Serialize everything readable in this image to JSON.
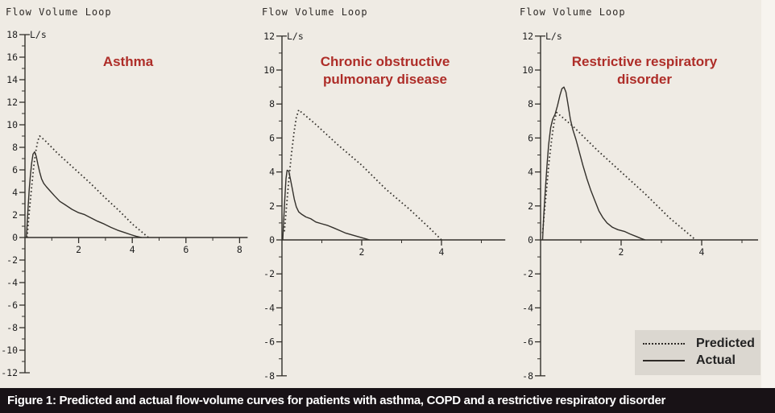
{
  "colors": {
    "background": "#efebe4",
    "accent_red": "#ae2d28",
    "curve_color": "#33302b",
    "tick_text": "#1f1f1f",
    "legend_bg": "#dbd7d0",
    "caption_bg": "#181216",
    "caption_text": "#ffffff"
  },
  "legend": {
    "predicted_label": "Predicted",
    "actual_label": "Actual"
  },
  "caption": {
    "text": "Figure 1: Predicted and actual flow-volume curves for patients with asthma, COPD and a restrictive respiratory disorder"
  },
  "chart_data": [
    {
      "type": "line",
      "header": "Flow Volume Loop",
      "title_lines": [
        "Asthma"
      ],
      "ylabel": "L/s",
      "unit_label": "L/s",
      "ylim": [
        -12,
        18
      ],
      "xlim": [
        0,
        8.3
      ],
      "y_label_step": 2,
      "y_minor_step": 1,
      "x_major_ticks": [
        2,
        4,
        6,
        8
      ],
      "x_minor_step": 1,
      "grid": false,
      "legend_position": "none",
      "series": [
        {
          "name": "Predicted",
          "style": "dotted",
          "points": [
            [
              0.08,
              0
            ],
            [
              0.12,
              1.2
            ],
            [
              0.18,
              2.8
            ],
            [
              0.25,
              4.5
            ],
            [
              0.32,
              6.2
            ],
            [
              0.4,
              7.6
            ],
            [
              0.48,
              8.6
            ],
            [
              0.55,
              9.0
            ],
            [
              0.75,
              8.6
            ],
            [
              1.2,
              7.5
            ],
            [
              1.8,
              6.2
            ],
            [
              2.4,
              4.9
            ],
            [
              3.0,
              3.5
            ],
            [
              3.5,
              2.4
            ],
            [
              4.0,
              1.2
            ],
            [
              4.3,
              0.6
            ],
            [
              4.6,
              0
            ]
          ]
        },
        {
          "name": "Actual",
          "style": "solid",
          "points": [
            [
              0.05,
              0
            ],
            [
              0.08,
              1.2
            ],
            [
              0.12,
              2.8
            ],
            [
              0.16,
              4.3
            ],
            [
              0.2,
              5.5
            ],
            [
              0.25,
              6.6
            ],
            [
              0.3,
              7.4
            ],
            [
              0.36,
              7.6
            ],
            [
              0.42,
              7.2
            ],
            [
              0.48,
              6.5
            ],
            [
              0.55,
              5.8
            ],
            [
              0.62,
              5.2
            ],
            [
              0.7,
              4.8
            ],
            [
              0.8,
              4.5
            ],
            [
              0.95,
              4.1
            ],
            [
              1.1,
              3.7
            ],
            [
              1.3,
              3.2
            ],
            [
              1.5,
              2.9
            ],
            [
              1.75,
              2.5
            ],
            [
              2.0,
              2.2
            ],
            [
              2.2,
              2.05
            ],
            [
              2.45,
              1.75
            ],
            [
              2.7,
              1.45
            ],
            [
              2.95,
              1.2
            ],
            [
              3.2,
              0.9
            ],
            [
              3.45,
              0.65
            ],
            [
              3.7,
              0.45
            ],
            [
              3.95,
              0.25
            ],
            [
              4.15,
              0.1
            ],
            [
              4.35,
              0
            ]
          ]
        }
      ]
    },
    {
      "type": "line",
      "header": "Flow Volume Loop",
      "title_lines": [
        "Chronic obstructive",
        "pulmonary disease"
      ],
      "ylabel": "L/s",
      "unit_label": "L/s",
      "ylim": [
        -8,
        12
      ],
      "xlim": [
        0,
        5.6
      ],
      "y_label_step": 2,
      "y_minor_step": 1,
      "x_major_ticks": [
        2,
        4
      ],
      "x_minor_step": 1,
      "grid": false,
      "legend_position": "none",
      "series": [
        {
          "name": "Predicted",
          "style": "dotted",
          "points": [
            [
              0.06,
              0.5
            ],
            [
              0.1,
              1.6
            ],
            [
              0.16,
              3.2
            ],
            [
              0.23,
              4.9
            ],
            [
              0.3,
              6.3
            ],
            [
              0.36,
              7.2
            ],
            [
              0.42,
              7.65
            ],
            [
              0.8,
              6.9
            ],
            [
              1.4,
              5.6
            ],
            [
              2.0,
              4.4
            ],
            [
              2.6,
              3.0
            ],
            [
              3.2,
              1.8
            ],
            [
              3.7,
              0.7
            ],
            [
              4.0,
              0
            ]
          ]
        },
        {
          "name": "Actual",
          "style": "solid",
          "points": [
            [
              0.02,
              0
            ],
            [
              0.04,
              1.0
            ],
            [
              0.07,
              2.4
            ],
            [
              0.1,
              3.6
            ],
            [
              0.13,
              4.1
            ],
            [
              0.17,
              4.05
            ],
            [
              0.21,
              3.6
            ],
            [
              0.26,
              3.0
            ],
            [
              0.31,
              2.4
            ],
            [
              0.36,
              1.95
            ],
            [
              0.42,
              1.65
            ],
            [
              0.5,
              1.5
            ],
            [
              0.6,
              1.35
            ],
            [
              0.72,
              1.25
            ],
            [
              0.85,
              1.05
            ],
            [
              1.0,
              0.95
            ],
            [
              1.15,
              0.85
            ],
            [
              1.3,
              0.7
            ],
            [
              1.45,
              0.55
            ],
            [
              1.6,
              0.4
            ],
            [
              1.75,
              0.3
            ],
            [
              1.9,
              0.2
            ],
            [
              2.05,
              0.1
            ],
            [
              2.2,
              0
            ]
          ]
        }
      ]
    },
    {
      "type": "line",
      "header": "Flow Volume Loop",
      "title_lines": [
        "Restrictive respiratory",
        "disorder"
      ],
      "ylabel": "L/s",
      "unit_label": "L/s",
      "ylim": [
        -8,
        12
      ],
      "xlim": [
        0,
        5.4
      ],
      "y_label_step": 2,
      "y_minor_step": 1,
      "x_major_ticks": [
        2,
        4
      ],
      "x_minor_step": 1,
      "grid": false,
      "legend_position": "none",
      "series": [
        {
          "name": "Predicted",
          "style": "dotted",
          "points": [
            [
              0.05,
              0.4
            ],
            [
              0.09,
              1.5
            ],
            [
              0.15,
              3.0
            ],
            [
              0.21,
              4.6
            ],
            [
              0.28,
              6.0
            ],
            [
              0.34,
              7.0
            ],
            [
              0.4,
              7.5
            ],
            [
              0.8,
              6.7
            ],
            [
              1.4,
              5.3
            ],
            [
              2.0,
              4.0
            ],
            [
              2.6,
              2.7
            ],
            [
              3.2,
              1.3
            ],
            [
              3.6,
              0.5
            ],
            [
              3.85,
              0
            ]
          ]
        },
        {
          "name": "Actual",
          "style": "solid",
          "points": [
            [
              0.05,
              0
            ],
            [
              0.08,
              1.5
            ],
            [
              0.12,
              3.0
            ],
            [
              0.16,
              4.4
            ],
            [
              0.2,
              5.6
            ],
            [
              0.25,
              6.6
            ],
            [
              0.3,
              7.1
            ],
            [
              0.36,
              7.4
            ],
            [
              0.42,
              7.9
            ],
            [
              0.48,
              8.5
            ],
            [
              0.53,
              8.9
            ],
            [
              0.58,
              9.0
            ],
            [
              0.63,
              8.7
            ],
            [
              0.68,
              8.0
            ],
            [
              0.74,
              7.1
            ],
            [
              0.8,
              6.5
            ],
            [
              0.88,
              5.9
            ],
            [
              0.96,
              5.2
            ],
            [
              1.05,
              4.4
            ],
            [
              1.15,
              3.6
            ],
            [
              1.25,
              2.9
            ],
            [
              1.35,
              2.3
            ],
            [
              1.45,
              1.7
            ],
            [
              1.55,
              1.3
            ],
            [
              1.65,
              1.0
            ],
            [
              1.78,
              0.75
            ],
            [
              1.92,
              0.6
            ],
            [
              2.08,
              0.5
            ],
            [
              2.22,
              0.35
            ],
            [
              2.38,
              0.2
            ],
            [
              2.5,
              0.08
            ],
            [
              2.6,
              0
            ]
          ]
        }
      ]
    }
  ]
}
